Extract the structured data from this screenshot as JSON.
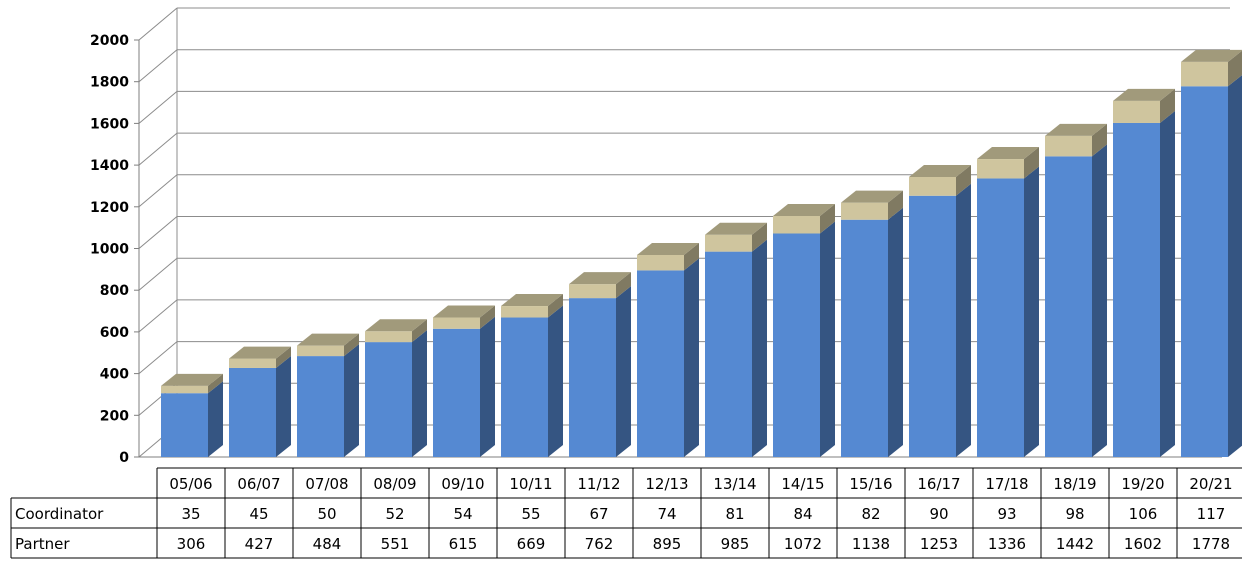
{
  "chart_data": {
    "type": "bar",
    "stacked": true,
    "three_d": true,
    "categories": [
      "05/06",
      "06/07",
      "07/08",
      "08/09",
      "09/10",
      "10/11",
      "11/12",
      "12/13",
      "13/14",
      "14/15",
      "15/16",
      "16/17",
      "17/18",
      "18/19",
      "19/20",
      "20/21"
    ],
    "series": [
      {
        "name": "Partner",
        "color": "#5589D2",
        "values": [
          306,
          427,
          484,
          551,
          615,
          669,
          762,
          895,
          985,
          1072,
          1138,
          1253,
          1336,
          1442,
          1602,
          1778
        ]
      },
      {
        "name": "Coordinator",
        "color": "#CFC59E",
        "values": [
          35,
          45,
          50,
          52,
          54,
          55,
          67,
          74,
          81,
          84,
          82,
          90,
          93,
          98,
          106,
          117
        ]
      }
    ],
    "ylim": [
      0,
      2000
    ],
    "yticks": [
      "0",
      "200",
      "400",
      "600",
      "800",
      "1000",
      "1200",
      "1400",
      "1600",
      "1800",
      "2000"
    ],
    "grid": true,
    "data_table": true,
    "title": "",
    "xlabel": "",
    "ylabel": ""
  }
}
